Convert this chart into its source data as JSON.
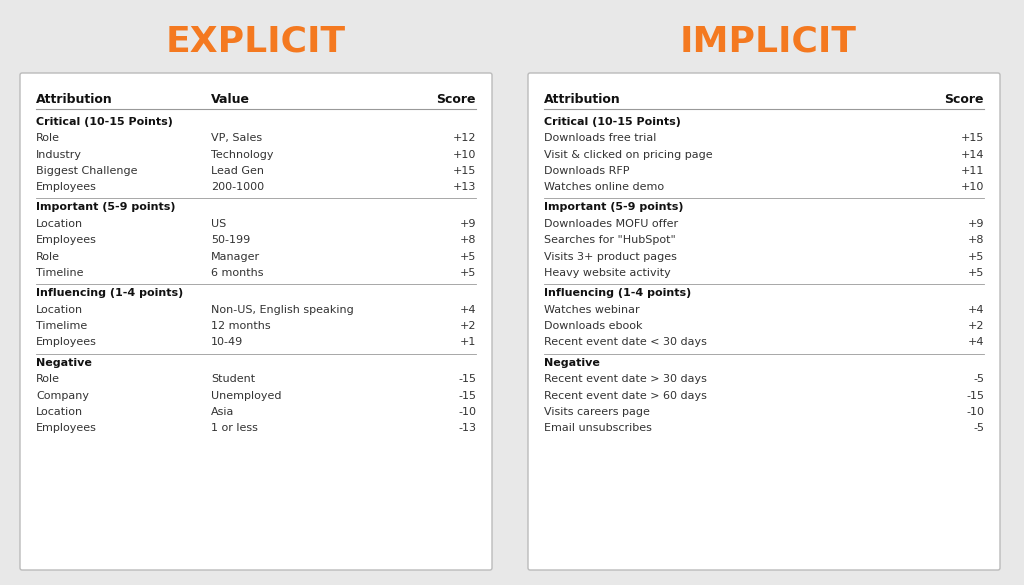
{
  "bg_color": "#e8e8e8",
  "panel_color": "#ffffff",
  "panel_border_color": "#bbbbbb",
  "title_color": "#f47920",
  "text_color": "#333333",
  "header_color": "#111111",
  "section_header_color": "#111111",
  "title_left": "EXPLICIT",
  "title_right": "IMPLICIT",
  "title_fontsize": 26,
  "header_fontsize": 9,
  "section_fontsize": 8,
  "row_fontsize": 8,
  "explicit_headers": [
    "Attribution",
    "Value",
    "Score"
  ],
  "explicit_sections": [
    {
      "name": "Critical (10-15 Points)",
      "rows": [
        [
          "Role",
          "VP, Sales",
          "+12"
        ],
        [
          "Industry",
          "Technology",
          "+10"
        ],
        [
          "Biggest Challenge",
          "Lead Gen",
          "+15"
        ],
        [
          "Employees",
          "200-1000",
          "+13"
        ]
      ]
    },
    {
      "name": "Important (5-9 points)",
      "rows": [
        [
          "Location",
          "US",
          "+9"
        ],
        [
          "Employees",
          "50-199",
          "+8"
        ],
        [
          "Role",
          "Manager",
          "+5"
        ],
        [
          "Timeline",
          "6 months",
          "+5"
        ]
      ]
    },
    {
      "name": "Influencing (1-4 points)",
      "rows": [
        [
          "Location",
          "Non-US, English speaking",
          "+4"
        ],
        [
          "Timelime",
          "12 months",
          "+2"
        ],
        [
          "Employees",
          "10-49",
          "+1"
        ]
      ]
    },
    {
      "name": "Negative",
      "rows": [
        [
          "Role",
          "Student",
          "-15"
        ],
        [
          "Company",
          "Unemployed",
          "-15"
        ],
        [
          "Location",
          "Asia",
          "-10"
        ],
        [
          "Employees",
          "1 or less",
          "-13"
        ]
      ]
    }
  ],
  "implicit_headers": [
    "Attribution",
    "Score"
  ],
  "implicit_sections": [
    {
      "name": "Critical (10-15 Points)",
      "rows": [
        [
          "Downloads free trial",
          "+15"
        ],
        [
          "Visit & clicked on pricing page",
          "+14"
        ],
        [
          "Downloads RFP",
          "+11"
        ],
        [
          "Watches online demo",
          "+10"
        ]
      ]
    },
    {
      "name": "Important (5-9 points)",
      "rows": [
        [
          "Downloades MOFU offer",
          "+9"
        ],
        [
          "Searches for \"HubSpot\"",
          "+8"
        ],
        [
          "Visits 3+ product pages",
          "+5"
        ],
        [
          "Heavy website activity",
          "+5"
        ]
      ]
    },
    {
      "name": "Influencing (1-4 points)",
      "rows": [
        [
          "Watches webinar",
          "+4"
        ],
        [
          "Downloads ebook",
          "+2"
        ],
        [
          "Recent event date < 30 days",
          "+4"
        ]
      ]
    },
    {
      "name": "Negative",
      "rows": [
        [
          "Recent event date > 30 days",
          "-5"
        ],
        [
          "Recent event date > 60 days",
          "-15"
        ],
        [
          "Visits careers page",
          "-10"
        ],
        [
          "Email unsubscribes",
          "-5"
        ]
      ]
    }
  ]
}
